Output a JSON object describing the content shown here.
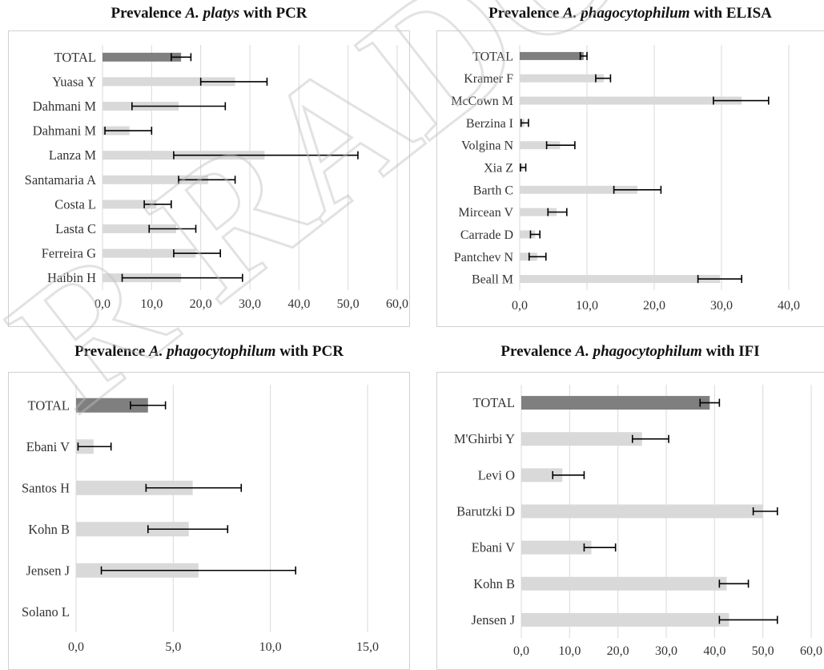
{
  "chart_data": [
    {
      "type": "bar",
      "orientation": "horizontal",
      "title_prefix": "Prevalence ",
      "title_italic": "A. platys",
      "title_suffix": " with PCR",
      "categories": [
        "TOTAL",
        "Yuasa Y",
        "Dahmani M",
        "Dahmani M",
        "Lanza M",
        "Santamaria A",
        "Costa L",
        "Lasta C",
        "Ferreira G",
        "Haibin H"
      ],
      "values": [
        16.0,
        27.0,
        15.5,
        5.5,
        33.0,
        21.5,
        11.0,
        15.0,
        19.0,
        16.0
      ],
      "err_low": [
        14.0,
        20.0,
        6.0,
        0.5,
        14.5,
        15.5,
        8.5,
        9.5,
        14.5,
        4.0
      ],
      "err_high": [
        18.0,
        33.5,
        25.0,
        10.0,
        52.0,
        27.0,
        14.0,
        19.0,
        24.0,
        28.5
      ],
      "highlight": [
        true,
        false,
        false,
        false,
        false,
        false,
        false,
        false,
        false,
        false
      ],
      "xlim": [
        0,
        60
      ],
      "ticks": [
        "0,0",
        "10,0",
        "20,0",
        "30,0",
        "40,0",
        "50,0",
        "60,0"
      ],
      "grid": true
    },
    {
      "type": "bar",
      "orientation": "horizontal",
      "title_prefix": "Prevalence ",
      "title_italic": "A. phagocytophilum",
      "title_suffix": " with ELISA",
      "categories": [
        "TOTAL",
        "Kramer F",
        "McCown M",
        "Berzina I",
        "Volgina N",
        "Xia Z",
        "Barth C",
        "Mircean V",
        "Carrade D",
        "Pantchev N",
        "Beall M"
      ],
      "values": [
        9.5,
        12.5,
        33.0,
        0.7,
        6.0,
        0.5,
        17.5,
        5.5,
        2.3,
        2.6,
        29.8
      ],
      "err_low": [
        9.0,
        11.3,
        28.8,
        0.2,
        4.0,
        0.1,
        14.0,
        4.2,
        1.6,
        1.4,
        26.5
      ],
      "err_high": [
        10.0,
        13.5,
        37.0,
        1.3,
        8.2,
        0.9,
        21.0,
        7.0,
        3.0,
        3.9,
        33.0
      ],
      "highlight": [
        true,
        false,
        false,
        false,
        false,
        false,
        false,
        false,
        false,
        false,
        false
      ],
      "xlim": [
        0,
        40
      ],
      "ticks": [
        "0,0",
        "10,0",
        "20,0",
        "30,0",
        "40,0"
      ],
      "grid": true
    },
    {
      "type": "bar",
      "orientation": "horizontal",
      "title_prefix": "Prevalence ",
      "title_italic": "A. phagocytophilum",
      "title_suffix": " with PCR",
      "categories": [
        "TOTAL",
        "Ebani V",
        "Santos H",
        "Kohn B",
        "Jensen J",
        "Solano L"
      ],
      "values": [
        3.7,
        0.9,
        6.0,
        5.8,
        6.3,
        0.0
      ],
      "err_low": [
        2.8,
        0.1,
        3.6,
        3.7,
        1.3,
        0.0
      ],
      "err_high": [
        4.6,
        1.8,
        8.5,
        7.8,
        11.3,
        0.0
      ],
      "highlight": [
        true,
        false,
        false,
        false,
        false,
        false
      ],
      "xlim": [
        0,
        15
      ],
      "ticks": [
        "0,0",
        "5,0",
        "10,0",
        "15,0"
      ],
      "grid": true
    },
    {
      "type": "bar",
      "orientation": "horizontal",
      "title_prefix": "Prevalence ",
      "title_italic": "A. phagocytophilum",
      "title_suffix": " with IFI",
      "categories": [
        "TOTAL",
        "M'Ghirbi Y",
        "Levi O",
        "Barutzki D",
        "Ebani V",
        "Kohn B",
        "Jensen J"
      ],
      "values": [
        39.0,
        25.0,
        8.5,
        50.0,
        14.5,
        42.5,
        43.0
      ],
      "err_low": [
        37.0,
        23.0,
        6.5,
        48.0,
        13.0,
        41.0,
        41.0
      ],
      "err_high": [
        41.0,
        30.5,
        13.0,
        53.0,
        19.5,
        47.0,
        53.0
      ],
      "highlight": [
        true,
        false,
        false,
        false,
        false,
        false,
        false
      ],
      "xlim": [
        0,
        60
      ],
      "ticks": [
        "0,0",
        "10,0",
        "20,0",
        "30,0",
        "40,0",
        "50,0",
        "60,0"
      ],
      "grid": true
    }
  ],
  "colors": {
    "highlight_bar": "#7f7f7f",
    "bar": "#d9d9d9",
    "grid": "#d9d9d9",
    "error_bar": "#000000",
    "text": "#333333",
    "watermark": "#bfbfbf"
  },
  "watermark_text": "R RADO"
}
